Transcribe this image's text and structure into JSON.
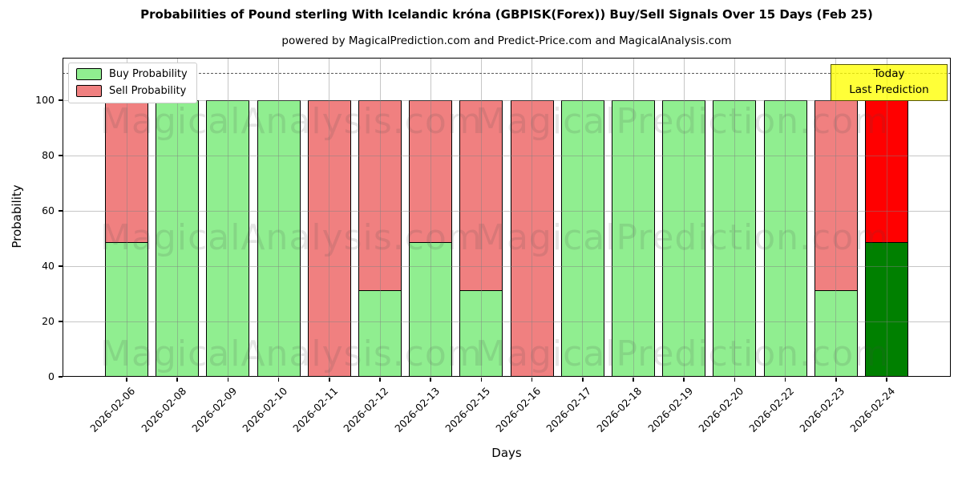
{
  "chart_data": {
    "type": "bar",
    "stacked": true,
    "title": "Probabilities of Pound sterling With Icelandic króna (GBPISK(Forex)) Buy/Sell Signals Over 15 Days (Feb 25)",
    "subtitle": "powered by MagicalPrediction.com and Predict-Price.com and MagicalAnalysis.com",
    "xlabel": "Days",
    "ylabel": "Probability",
    "categories": [
      "2026-02-06",
      "2026-02-08",
      "2026-02-09",
      "2026-02-10",
      "2026-02-11",
      "2026-02-12",
      "2026-02-13",
      "2026-02-15",
      "2026-02-16",
      "2026-02-17",
      "2026-02-18",
      "2026-02-19",
      "2026-02-20",
      "2026-02-22",
      "2026-02-23",
      "2026-02-24"
    ],
    "series": [
      {
        "name": "Buy Probability",
        "color": "#90ee90",
        "final_bar_color": "#008000",
        "values": [
          48.5,
          100,
          100,
          100,
          0,
          31,
          48.5,
          31,
          0,
          100,
          100,
          100,
          100,
          100,
          31,
          48.5
        ]
      },
      {
        "name": "Sell Probability",
        "color": "#f08080",
        "final_bar_color": "#ff0000",
        "values": [
          51.5,
          0,
          0,
          0,
          100,
          69,
          51.5,
          69,
          100,
          0,
          0,
          0,
          0,
          0,
          69,
          51.5
        ]
      }
    ],
    "ylim": [
      0,
      115.4
    ],
    "yticks": [
      0,
      20,
      40,
      60,
      80,
      100
    ],
    "dashed_line_y": 110,
    "grid": true,
    "legend_position": "upper-left",
    "bar_edge_color": "#000000",
    "annotation": {
      "lines": [
        "Today",
        "Last Prediction"
      ],
      "bg_color": "#ffff00"
    },
    "watermarks": {
      "left": "MagicalAnalysis.com",
      "right": "MagicalPrediction.com",
      "rows": 3
    }
  }
}
